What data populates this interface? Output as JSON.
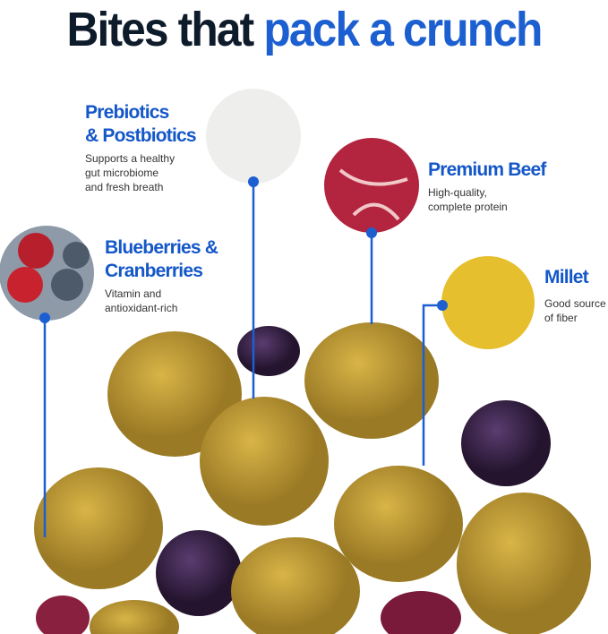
{
  "title": {
    "part1": "Bites that",
    "part2": "pack a crunch"
  },
  "ingredients": [
    {
      "name": "Prebiotics",
      "name2": "& Postbiotics",
      "desc": [
        "Supports a healthy",
        "gut microbiome",
        "and fresh breath"
      ]
    },
    {
      "name": "Premium Beef",
      "desc": [
        "High-quality,",
        "complete protein"
      ]
    },
    {
      "name": "Blueberries &",
      "name2": "Cranberries",
      "desc": [
        "Vitamin and",
        "antioxidant-rich"
      ]
    },
    {
      "name": "Millet",
      "desc": [
        "Good source",
        "of fiber"
      ]
    }
  ],
  "colors": {
    "accent": "#1c5fd1",
    "dark": "#0e1b2b",
    "treat": "#b8952e",
    "berry": "#3a2346"
  }
}
